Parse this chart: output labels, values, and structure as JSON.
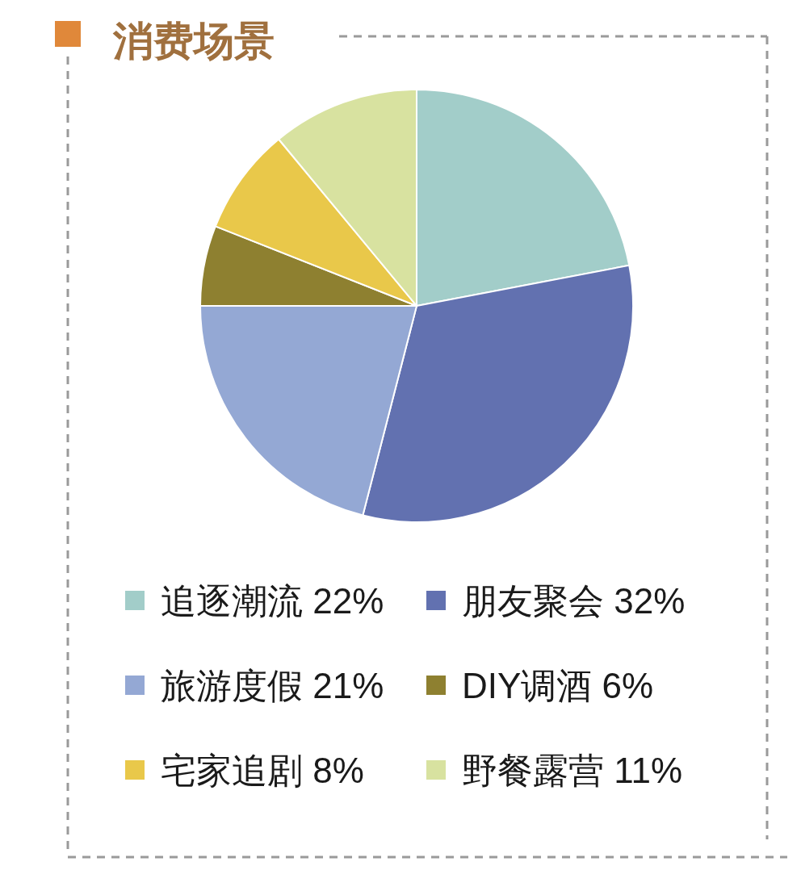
{
  "chart_data": {
    "type": "pie",
    "title": "消费场景",
    "categories": [
      "追逐潮流",
      "朋友聚会",
      "旅游度假",
      "DIY调酒",
      "宅家追剧",
      "野餐露营"
    ],
    "values": [
      22,
      32,
      21,
      6,
      8,
      11
    ],
    "value_labels": [
      "22%",
      "32%",
      "21%",
      "6%",
      "8%",
      "11%"
    ],
    "colors": [
      "#a2cdc9",
      "#6271b0",
      "#94a8d4",
      "#8e8030",
      "#e9c84a",
      "#d8e2a0"
    ],
    "legend": "bottom"
  }
}
